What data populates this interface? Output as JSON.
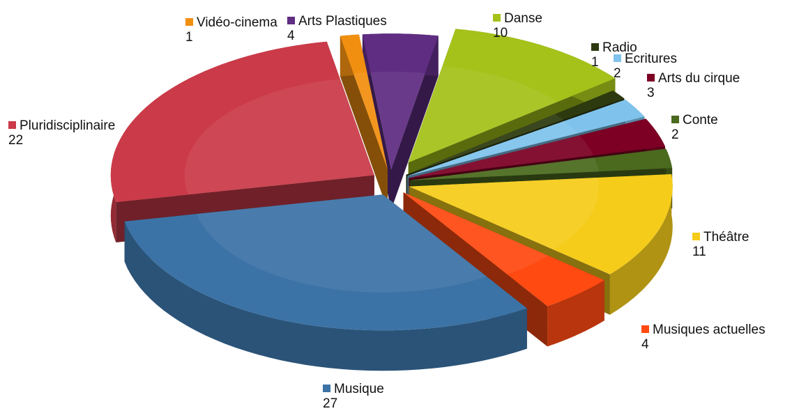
{
  "chart_data": {
    "type": "pie",
    "style": "3d-exploded",
    "title": "",
    "legend": "labels-on-slices",
    "slices": [
      {
        "label": "Danse",
        "value": 10,
        "color": "#a4c21a"
      },
      {
        "label": "Radio",
        "value": 1,
        "color": "#2d3a0f"
      },
      {
        "label": "Ecritures",
        "value": 2,
        "color": "#7fc3ec"
      },
      {
        "label": "Arts du cirque",
        "value": 3,
        "color": "#7d0024"
      },
      {
        "label": "Conte",
        "value": 2,
        "color": "#4b6a1e"
      },
      {
        "label": "Théâtre",
        "value": 11,
        "color": "#f5cc1a"
      },
      {
        "label": "Musiques actuelles",
        "value": 4,
        "color": "#ff4a12"
      },
      {
        "label": "Musique",
        "value": 27,
        "color": "#3c73a6"
      },
      {
        "label": "Pluridisciplinaire",
        "value": 22,
        "color": "#cb3a48"
      },
      {
        "label": "Vidéo-cinema",
        "value": 1,
        "color": "#f18f10"
      },
      {
        "label": "Arts Plastiques",
        "value": 4,
        "color": "#5f2d82"
      }
    ]
  }
}
